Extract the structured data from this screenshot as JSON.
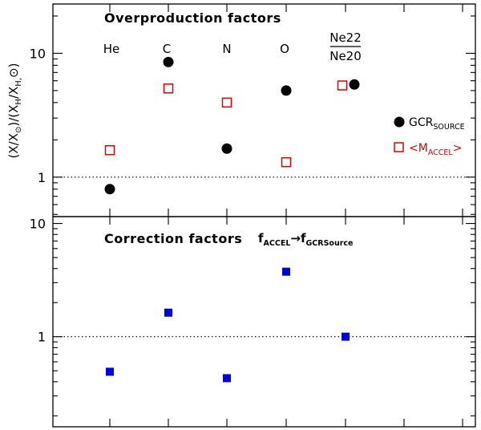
{
  "chart_data": [
    {
      "type": "scatter",
      "panel": "top",
      "title": "Overproduction factors",
      "ylabel": "(X/X⊙)/(XH/XH,⊙)",
      "yscale": "log",
      "ylim": [
        0.48,
        25
      ],
      "yticks_labeled": [
        1,
        10
      ],
      "reference_line": 1,
      "categories": [
        "He",
        "C",
        "N",
        "O",
        "Ne22/Ne20"
      ],
      "series": [
        {
          "name": "GCR_SOURCE",
          "marker": "filled-circle",
          "color": "#000000",
          "values": [
            0.8,
            8.5,
            1.7,
            5.0,
            5.6
          ]
        },
        {
          "name": "<M_ACCEL>",
          "marker": "open-square",
          "color": "#dd0000",
          "values": [
            1.65,
            5.2,
            4.0,
            1.32,
            5.5
          ]
        }
      ]
    },
    {
      "type": "scatter",
      "panel": "bottom",
      "title": "Correction factors",
      "annotation": "f_ACCEL → f_GCRSource",
      "yscale": "log",
      "ylim": [
        0.16,
        11.5
      ],
      "yticks_labeled": [
        1,
        10
      ],
      "reference_line": 1,
      "categories": [
        "He",
        "C",
        "N",
        "O",
        "Ne22/Ne20"
      ],
      "series": [
        {
          "name": "correction factor",
          "marker": "filled-square",
          "color": "#0000dd",
          "values": [
            0.49,
            1.63,
            0.43,
            3.75,
            1.0
          ]
        }
      ]
    }
  ],
  "labels": {
    "top_title": "Overproduction factors",
    "bottom_title": "Correction factors",
    "ylabel_main": "(X/X",
    "ylabel_sun": "⊙",
    "ylabel_mid": ")/(X",
    "ylabel_h": "H",
    "ylabel_tail": "/X",
    "ylabel_h2": "H,",
    "ylabel_sun2": "⊙",
    "ylabel_close": ")",
    "elements": [
      "He",
      "C",
      "N",
      "O"
    ],
    "ratio_num": "Ne22",
    "ratio_den": "Ne20",
    "tick_1": "1",
    "tick_10": "10",
    "legend_gcr_main": "GCR",
    "legend_gcr_sub": "SOURCE",
    "legend_m_open": "<M",
    "legend_m_sub": "ACCEL",
    "legend_m_close": ">",
    "annot_f1": "f",
    "annot_sub1": "ACCEL",
    "annot_arrow": "→",
    "annot_f2": "f",
    "annot_sub2": "GCRSource"
  }
}
